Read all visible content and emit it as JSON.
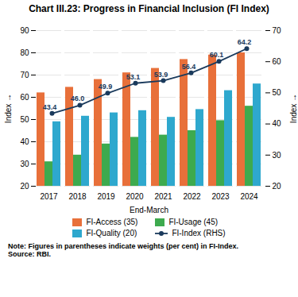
{
  "chart_data": {
    "type": "bar",
    "title": "Chart III.23: Progress in Financial Inclusion (FI Index)",
    "categories": [
      "2017",
      "2018",
      "2019",
      "2020",
      "2021",
      "2022",
      "2023",
      "2024"
    ],
    "xlabel": "End-March",
    "ylabel": "Index",
    "y2label": "Index",
    "ylim": [
      20,
      90
    ],
    "yticks": [
      20,
      30,
      40,
      50,
      60,
      70,
      80,
      90
    ],
    "y2lim": [
      20,
      70
    ],
    "y2ticks": [
      20,
      30,
      40,
      50,
      60,
      70
    ],
    "grid": true,
    "legend": "bottom",
    "series": [
      {
        "name": "FI-Access (35)",
        "color": "#E8703A",
        "values": [
          62,
          64.5,
          68,
          71,
          73,
          77,
          79,
          80
        ]
      },
      {
        "name": "FI-Usage (45)",
        "color": "#3DAA4E",
        "values": [
          31,
          34,
          39,
          42,
          43,
          45,
          49.5,
          56
        ]
      },
      {
        "name": "FI-Quality (20)",
        "color": "#2EA8CE",
        "values": [
          49,
          51.5,
          53,
          54,
          51,
          54.5,
          63,
          66
        ]
      },
      {
        "name": "FI-Index (RHS)",
        "type": "line",
        "axis": "y2",
        "color": "#1A3A5C",
        "marker": "circle",
        "data_labels": true,
        "values": [
          43.4,
          46.0,
          49.9,
          53.1,
          53.9,
          56.4,
          60.1,
          64.2
        ],
        "value_labels": [
          "43.4",
          "46.0",
          "49.9",
          "53.1",
          "53.9",
          "56.4",
          "60.1",
          "64.2"
        ]
      }
    ],
    "annotations": [
      "Note: Figures in parentheses indicate weights (per cent) in FI-Index.\nSource: RBI."
    ]
  }
}
